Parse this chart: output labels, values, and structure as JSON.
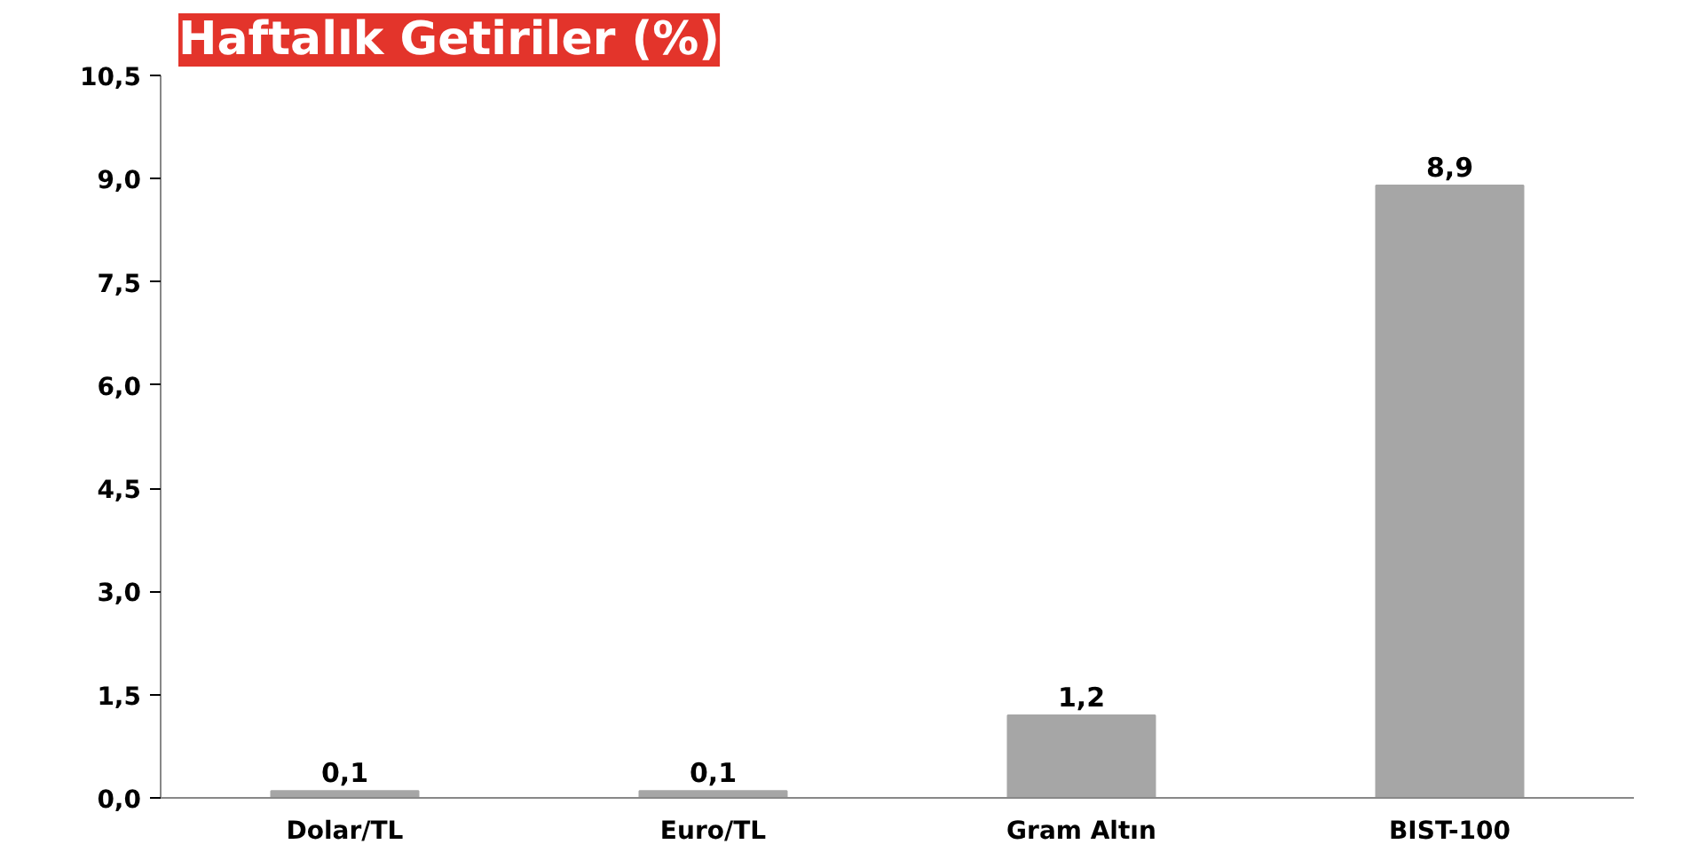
{
  "chart_data": {
    "type": "bar",
    "title": "Haftalık Getiriler (%)",
    "categories": [
      "Dolar/TL",
      "Euro/TL",
      "Gram Altın",
      "BIST-100"
    ],
    "values": [
      0.1,
      0.1,
      1.2,
      8.9
    ],
    "value_labels": [
      "0,1",
      "0,1",
      "1,2",
      "8,9"
    ],
    "color": "#a6a6a6",
    "ylim": [
      0,
      10.5
    ],
    "yticks": [
      {
        "value": 0,
        "label": "0,0"
      },
      {
        "value": 1.5,
        "label": "1,5"
      },
      {
        "value": 3,
        "label": "3,0"
      },
      {
        "value": 4.5,
        "label": "4,5"
      },
      {
        "value": 6,
        "label": "6,0"
      },
      {
        "value": 7.5,
        "label": "7,5"
      },
      {
        "value": 9,
        "label": "9,0"
      },
      {
        "value": 10.5,
        "label": "10,5"
      }
    ],
    "grid": false
  }
}
